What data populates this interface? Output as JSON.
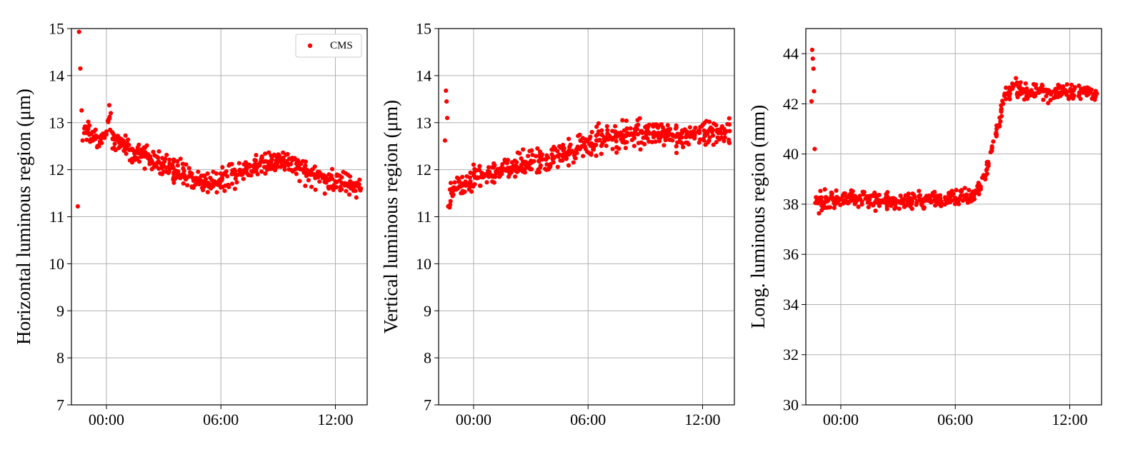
{
  "colors": {
    "series": "#ff0000",
    "grid": "#b0b0b0",
    "axes": "#000000"
  },
  "chart_data": [
    {
      "type": "scatter",
      "xlabel": "",
      "ylabel": "Horizontal luminous region (μm)",
      "ylim": [
        7,
        15
      ],
      "yticks": [
        7,
        8,
        9,
        10,
        11,
        12,
        13,
        14,
        15
      ],
      "xlim": [
        "-01:50",
        "13:40"
      ],
      "xticks": [
        "00:00",
        "06:00",
        "12:00"
      ],
      "grid": true,
      "legend": {
        "placement": "top-right",
        "entries": [
          "CMS"
        ]
      },
      "series": [
        {
          "name": "CMS",
          "color": "#ff0000",
          "points": [
            [
              "-01:30",
              11.22
            ],
            [
              "-01:26",
              14.93
            ],
            [
              "-01:22",
              14.15
            ],
            [
              "-01:18",
              13.26
            ],
            [
              "-01:15",
              12.62
            ],
            [
              "-01:10",
              12.78
            ],
            [
              "-01:00",
              12.85
            ],
            [
              "-00:40",
              12.7
            ],
            [
              "-00:20",
              12.6
            ],
            [
              "00:00",
              12.75
            ],
            [
              "00:10",
              13.12
            ],
            [
              "00:20",
              12.65
            ],
            [
              "00:40",
              12.58
            ],
            [
              "01:00",
              12.5
            ],
            [
              "01:20",
              12.42
            ],
            [
              "01:40",
              12.35
            ],
            [
              "02:00",
              12.28
            ],
            [
              "02:20",
              12.22
            ],
            [
              "02:40",
              12.15
            ],
            [
              "03:00",
              12.08
            ],
            [
              "03:20",
              12.02
            ],
            [
              "03:40",
              11.96
            ],
            [
              "04:00",
              11.9
            ],
            [
              "04:20",
              11.86
            ],
            [
              "04:40",
              11.8
            ],
            [
              "05:00",
              11.76
            ],
            [
              "05:20",
              11.72
            ],
            [
              "05:40",
              11.75
            ],
            [
              "06:00",
              11.8
            ],
            [
              "06:20",
              11.86
            ],
            [
              "06:40",
              11.92
            ],
            [
              "07:00",
              11.98
            ],
            [
              "07:20",
              12.04
            ],
            [
              "07:40",
              12.08
            ],
            [
              "08:00",
              12.12
            ],
            [
              "08:20",
              12.18
            ],
            [
              "08:40",
              12.22
            ],
            [
              "09:00",
              12.22
            ],
            [
              "09:20",
              12.18
            ],
            [
              "09:40",
              12.12
            ],
            [
              "10:00",
              12.04
            ],
            [
              "10:20",
              11.98
            ],
            [
              "10:40",
              11.9
            ],
            [
              "11:00",
              11.86
            ],
            [
              "11:20",
              11.82
            ],
            [
              "11:40",
              11.78
            ],
            [
              "12:00",
              11.75
            ],
            [
              "12:20",
              11.72
            ],
            [
              "12:40",
              11.68
            ],
            [
              "13:00",
              11.64
            ],
            [
              "13:20",
              11.6
            ]
          ]
        }
      ]
    },
    {
      "type": "scatter",
      "xlabel": "",
      "ylabel": "Vertical luminous region (μm)",
      "ylim": [
        7,
        15
      ],
      "yticks": [
        7,
        8,
        9,
        10,
        11,
        12,
        13,
        14,
        15
      ],
      "xlim": [
        "-01:50",
        "13:40"
      ],
      "xticks": [
        "00:00",
        "06:00",
        "12:00"
      ],
      "grid": true,
      "series": [
        {
          "name": "",
          "color": "#ff0000",
          "points": [
            [
              "-01:30",
              12.62
            ],
            [
              "-01:27",
              13.68
            ],
            [
              "-01:25",
              13.45
            ],
            [
              "-01:23",
              13.1
            ],
            [
              "-01:20",
              11.22
            ],
            [
              "-01:10",
              11.5
            ],
            [
              "-00:50",
              11.6
            ],
            [
              "-00:30",
              11.68
            ],
            [
              "-00:10",
              11.75
            ],
            [
              "00:10",
              11.82
            ],
            [
              "00:30",
              11.88
            ],
            [
              "00:50",
              11.92
            ],
            [
              "01:10",
              11.96
            ],
            [
              "01:30",
              12.0
            ],
            [
              "01:50",
              12.04
            ],
            [
              "02:10",
              12.06
            ],
            [
              "02:30",
              12.1
            ],
            [
              "02:50",
              12.14
            ],
            [
              "03:10",
              12.18
            ],
            [
              "03:30",
              12.22
            ],
            [
              "03:50",
              12.25
            ],
            [
              "04:10",
              12.28
            ],
            [
              "04:30",
              12.32
            ],
            [
              "04:50",
              12.36
            ],
            [
              "05:10",
              12.4
            ],
            [
              "05:30",
              12.45
            ],
            [
              "05:50",
              12.5
            ],
            [
              "06:10",
              12.56
            ],
            [
              "06:30",
              12.62
            ],
            [
              "06:50",
              12.66
            ],
            [
              "07:10",
              12.68
            ],
            [
              "07:30",
              12.7
            ],
            [
              "07:50",
              12.72
            ],
            [
              "08:10",
              12.74
            ],
            [
              "08:30",
              12.76
            ],
            [
              "08:50",
              12.78
            ],
            [
              "09:10",
              12.8
            ],
            [
              "09:30",
              12.78
            ],
            [
              "09:50",
              12.76
            ],
            [
              "10:10",
              12.74
            ],
            [
              "10:30",
              12.72
            ],
            [
              "10:50",
              12.72
            ],
            [
              "11:10",
              12.74
            ],
            [
              "11:30",
              12.76
            ],
            [
              "11:50",
              12.78
            ],
            [
              "12:10",
              12.78
            ],
            [
              "12:30",
              12.8
            ],
            [
              "12:50",
              12.78
            ],
            [
              "13:10",
              12.8
            ],
            [
              "13:25",
              12.82
            ]
          ]
        }
      ]
    },
    {
      "type": "scatter",
      "xlabel": "",
      "ylabel": "Long. luminous region (mm)",
      "ylim": [
        30,
        45
      ],
      "yticks": [
        30,
        32,
        34,
        36,
        38,
        40,
        42,
        44
      ],
      "xlim": [
        "-01:50",
        "13:40"
      ],
      "xticks": [
        "00:00",
        "06:00",
        "12:00"
      ],
      "grid": true,
      "series": [
        {
          "name": "",
          "color": "#ff0000",
          "points": [
            [
              "-01:32",
              42.1
            ],
            [
              "-01:30",
              44.15
            ],
            [
              "-01:28",
              43.8
            ],
            [
              "-01:26",
              43.4
            ],
            [
              "-01:24",
              42.5
            ],
            [
              "-01:22",
              40.2
            ],
            [
              "-01:20",
              38.05
            ],
            [
              "-01:00",
              38.1
            ],
            [
              "-00:40",
              38.15
            ],
            [
              "-00:20",
              38.2
            ],
            [
              "00:00",
              38.2
            ],
            [
              "00:30",
              38.25
            ],
            [
              "01:00",
              38.2
            ],
            [
              "01:30",
              38.18
            ],
            [
              "02:00",
              38.15
            ],
            [
              "02:30",
              38.12
            ],
            [
              "03:00",
              38.12
            ],
            [
              "03:30",
              38.1
            ],
            [
              "04:00",
              38.12
            ],
            [
              "04:30",
              38.15
            ],
            [
              "05:00",
              38.15
            ],
            [
              "05:30",
              38.2
            ],
            [
              "06:00",
              38.25
            ],
            [
              "06:30",
              38.3
            ],
            [
              "07:00",
              38.4
            ],
            [
              "07:20",
              38.7
            ],
            [
              "07:40",
              39.4
            ],
            [
              "07:55",
              40.2
            ],
            [
              "08:10",
              41.0
            ],
            [
              "08:25",
              41.8
            ],
            [
              "08:40",
              42.4
            ],
            [
              "09:00",
              42.6
            ],
            [
              "09:30",
              42.55
            ],
            [
              "10:00",
              42.5
            ],
            [
              "10:30",
              42.5
            ],
            [
              "11:00",
              42.45
            ],
            [
              "11:30",
              42.45
            ],
            [
              "12:00",
              42.5
            ],
            [
              "12:30",
              42.45
            ],
            [
              "13:00",
              42.4
            ],
            [
              "13:25",
              42.4
            ]
          ]
        }
      ]
    }
  ]
}
